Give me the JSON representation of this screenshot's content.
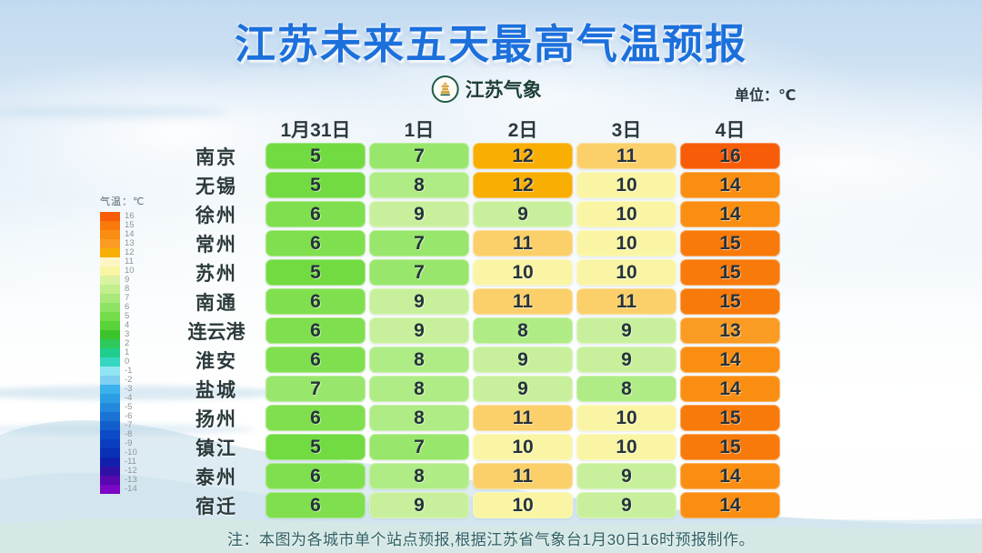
{
  "header": {
    "title": "江苏未来五天最高气温预报",
    "logo_text": "江苏气象",
    "unit_label": "单位：℃"
  },
  "legend": {
    "title": "气温：℃",
    "entries": [
      {
        "value": "16",
        "color": "#F75D08"
      },
      {
        "value": "15",
        "color": "#F87A0A"
      },
      {
        "value": "14",
        "color": "#F98E12"
      },
      {
        "value": "13",
        "color": "#FA9B24"
      },
      {
        "value": "12",
        "color": "#F9AE04"
      },
      {
        "value": "11",
        "color": "#FDF6C4"
      },
      {
        "value": "10",
        "color": "#F9F5A4"
      },
      {
        "value": "9",
        "color": "#D9F3A2"
      },
      {
        "value": "8",
        "color": "#C2EE8E"
      },
      {
        "value": "7",
        "color": "#A9E87B"
      },
      {
        "value": "6",
        "color": "#8FE364"
      },
      {
        "value": "5",
        "color": "#75DC4C"
      },
      {
        "value": "4",
        "color": "#59D338"
      },
      {
        "value": "3",
        "color": "#3CC42C"
      },
      {
        "value": "2",
        "color": "#2EC95A"
      },
      {
        "value": "1",
        "color": "#1FCE8C"
      },
      {
        "value": "0",
        "color": "#36D7C0"
      },
      {
        "value": "-1",
        "color": "#90E5F3"
      },
      {
        "value": "-2",
        "color": "#7ED0F2"
      },
      {
        "value": "-3",
        "color": "#3AB2ED"
      },
      {
        "value": "-4",
        "color": "#2B9EE5"
      },
      {
        "value": "-5",
        "color": "#2489DD"
      },
      {
        "value": "-6",
        "color": "#1A72D5"
      },
      {
        "value": "-7",
        "color": "#135ECD"
      },
      {
        "value": "-8",
        "color": "#0C4BC5"
      },
      {
        "value": "-9",
        "color": "#0A3DBD"
      },
      {
        "value": "-10",
        "color": "#0831B5"
      },
      {
        "value": "-11",
        "color": "#121FAD"
      },
      {
        "value": "-12",
        "color": "#2F10A5"
      },
      {
        "value": "-13",
        "color": "#5808AE"
      },
      {
        "value": "-14",
        "color": "#7B06C5"
      }
    ]
  },
  "table": {
    "columns": [
      "1月31日",
      "1日",
      "2日",
      "3日",
      "4日"
    ],
    "rows": [
      {
        "city": "南京",
        "values": [
          5,
          7,
          12,
          11,
          16
        ]
      },
      {
        "city": "无锡",
        "values": [
          5,
          8,
          12,
          10,
          14
        ]
      },
      {
        "city": "徐州",
        "values": [
          6,
          9,
          9,
          10,
          14
        ]
      },
      {
        "city": "常州",
        "values": [
          6,
          7,
          11,
          10,
          15
        ]
      },
      {
        "city": "苏州",
        "values": [
          5,
          7,
          10,
          10,
          15
        ]
      },
      {
        "city": "南通",
        "values": [
          6,
          9,
          11,
          11,
          15
        ]
      },
      {
        "city": "连云港",
        "values": [
          6,
          9,
          8,
          9,
          13
        ]
      },
      {
        "city": "淮安",
        "values": [
          6,
          8,
          9,
          9,
          14
        ]
      },
      {
        "city": "盐城",
        "values": [
          7,
          8,
          9,
          8,
          14
        ]
      },
      {
        "city": "扬州",
        "values": [
          6,
          8,
          11,
          10,
          15
        ]
      },
      {
        "city": "镇江",
        "values": [
          5,
          7,
          10,
          10,
          15
        ]
      },
      {
        "city": "泰州",
        "values": [
          6,
          8,
          11,
          9,
          14
        ]
      },
      {
        "city": "宿迁",
        "values": [
          6,
          9,
          10,
          9,
          14
        ]
      }
    ]
  },
  "temp_colors": {
    "5": "#72DB42",
    "6": "#80DF4E",
    "7": "#99E66C",
    "8": "#AFEC85",
    "9": "#C8F09C",
    "10": "#F9F5A4",
    "11": "#FBD06A",
    "12": "#F9AE04",
    "13": "#FA9B24",
    "14": "#F98E12",
    "15": "#F87A0A",
    "16": "#F75D08"
  },
  "note": "注：本图为各城市单个站点预报,根据江苏省气象台1月30日16时预报制作。",
  "chart_data": {
    "type": "heatmap",
    "title": "江苏未来五天最高气温预报",
    "unit": "℃",
    "categories": [
      "1月31日",
      "1日",
      "2日",
      "3日",
      "4日"
    ],
    "series": [
      {
        "name": "南京",
        "values": [
          5,
          7,
          12,
          11,
          16
        ]
      },
      {
        "name": "无锡",
        "values": [
          5,
          8,
          12,
          10,
          14
        ]
      },
      {
        "name": "徐州",
        "values": [
          6,
          9,
          9,
          10,
          14
        ]
      },
      {
        "name": "常州",
        "values": [
          6,
          7,
          11,
          10,
          15
        ]
      },
      {
        "name": "苏州",
        "values": [
          5,
          7,
          10,
          10,
          15
        ]
      },
      {
        "name": "南通",
        "values": [
          6,
          9,
          11,
          11,
          15
        ]
      },
      {
        "name": "连云港",
        "values": [
          6,
          9,
          8,
          9,
          13
        ]
      },
      {
        "name": "淮安",
        "values": [
          6,
          8,
          9,
          9,
          14
        ]
      },
      {
        "name": "盐城",
        "values": [
          7,
          8,
          9,
          8,
          14
        ]
      },
      {
        "name": "扬州",
        "values": [
          6,
          8,
          11,
          10,
          15
        ]
      },
      {
        "name": "镇江",
        "values": [
          5,
          7,
          10,
          10,
          15
        ]
      },
      {
        "name": "泰州",
        "values": [
          6,
          8,
          11,
          9,
          14
        ]
      },
      {
        "name": "宿迁",
        "values": [
          6,
          9,
          10,
          9,
          14
        ]
      }
    ],
    "colorbar": {
      "label": "气温",
      "unit": "℃",
      "max": 16,
      "min": -14
    },
    "legend_position": "left",
    "annotation": "注：本图为各城市单个站点预报,根据江苏省气象台1月30日16时预报制作。"
  }
}
